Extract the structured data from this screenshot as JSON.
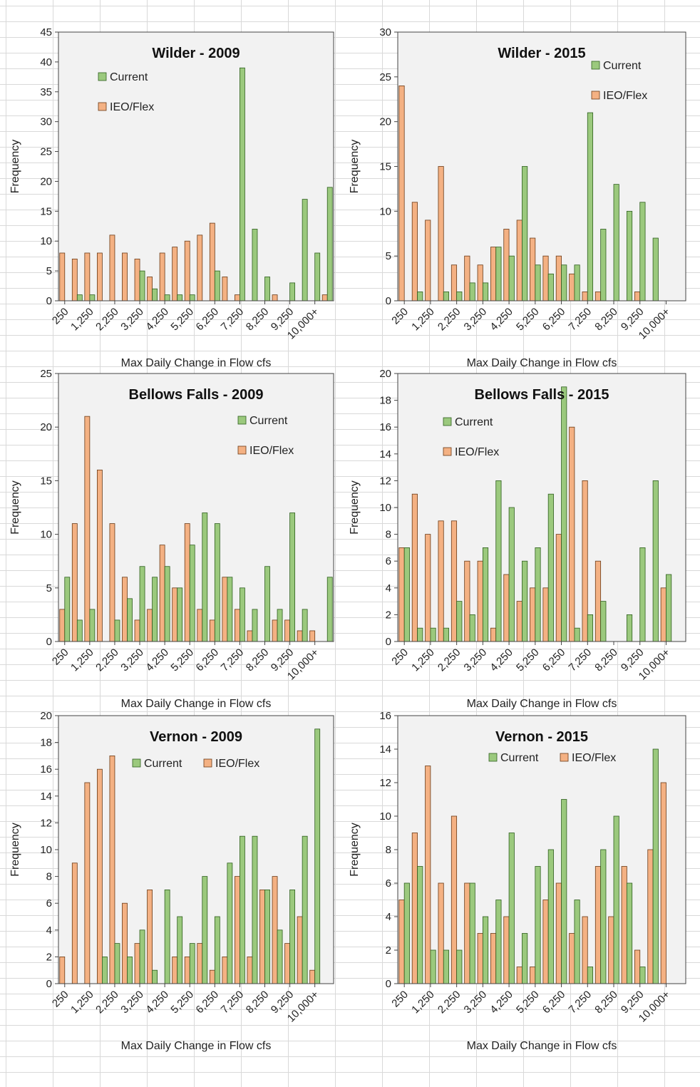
{
  "colors": {
    "current_fill": "#9bc97d",
    "current_stroke": "#2e5f1e",
    "ieo_fill": "#f4b183",
    "ieo_stroke": "#6a3a16",
    "plot_bg": "#f2f2f2",
    "plot_border": "#444444"
  },
  "chart_data": [
    {
      "type": "bar",
      "title": "Wilder - 2009",
      "xlabel": "Max Daily Change in Flow cfs",
      "ylabel": "Frequency",
      "ylim": [
        0,
        45
      ],
      "y_ticks": [
        "0",
        "5",
        "10",
        "15",
        "20",
        "25",
        "30",
        "35",
        "40",
        "45"
      ],
      "x_tick_labels": [
        "250",
        "1,250",
        "2,250",
        "3,250",
        "4,250",
        "5,250",
        "6,250",
        "7,250",
        "8,250",
        "9,250",
        "10,000+"
      ],
      "legend_placement": "top-left",
      "series": [
        {
          "name": "Current",
          "values": [
            0,
            1,
            1,
            0,
            0,
            0,
            5,
            2,
            1,
            1,
            1,
            0,
            5,
            0,
            39,
            12,
            4,
            0,
            3,
            17,
            8,
            19
          ]
        },
        {
          "name": "IEO/Flex",
          "values": [
            8,
            7,
            8,
            8,
            11,
            8,
            7,
            4,
            8,
            9,
            10,
            11,
            13,
            4,
            1,
            0,
            0,
            1,
            0,
            0,
            0,
            1
          ]
        }
      ]
    },
    {
      "type": "bar",
      "title": "Wilder - 2015",
      "xlabel": "Max Daily Change in Flow cfs",
      "ylabel": "Frequency",
      "ylim": [
        0,
        30
      ],
      "y_ticks": [
        "0",
        "5",
        "10",
        "15",
        "20",
        "25",
        "30"
      ],
      "x_tick_labels": [
        "250",
        "1,250",
        "2,250",
        "3,250",
        "4,250",
        "5,250",
        "6,250",
        "7,250",
        "8,250",
        "9,250",
        "10,000+"
      ],
      "legend_placement": "top-right",
      "series": [
        {
          "name": "Current",
          "values": [
            0,
            1,
            0,
            1,
            1,
            2,
            2,
            6,
            5,
            15,
            4,
            3,
            4,
            4,
            21,
            8,
            13,
            10,
            11,
            7,
            0,
            0
          ]
        },
        {
          "name": "IEO/Flex",
          "values": [
            24,
            11,
            9,
            15,
            4,
            5,
            4,
            6,
            8,
            9,
            7,
            5,
            5,
            3,
            1,
            1,
            0,
            0,
            1,
            0,
            0,
            0
          ]
        }
      ]
    },
    {
      "type": "bar",
      "title": "Bellows Falls - 2009",
      "xlabel": "Max Daily Change in Flow cfs",
      "ylabel": "Frequency",
      "ylim": [
        0,
        25
      ],
      "y_ticks": [
        "0",
        "5",
        "10",
        "15",
        "20",
        "25"
      ],
      "x_tick_labels": [
        "250",
        "1,250",
        "2,250",
        "3,250",
        "4,250",
        "5,250",
        "6,250",
        "7,250",
        "8,250",
        "9,250",
        "10,000+"
      ],
      "legend_placement": "top-right",
      "series": [
        {
          "name": "Current",
          "values": [
            6,
            2,
            3,
            0,
            2,
            4,
            7,
            6,
            7,
            5,
            9,
            12,
            11,
            6,
            5,
            3,
            7,
            3,
            12,
            3,
            0,
            6
          ]
        },
        {
          "name": "IEO/Flex",
          "values": [
            3,
            11,
            21,
            16,
            11,
            6,
            2,
            3,
            9,
            5,
            11,
            3,
            2,
            6,
            3,
            1,
            0,
            2,
            2,
            1,
            1,
            0
          ]
        }
      ]
    },
    {
      "type": "bar",
      "title": "Bellows Falls - 2015",
      "xlabel": "Max Daily Change in Flow cfs",
      "ylabel": "Frequency",
      "ylim": [
        0,
        20
      ],
      "y_ticks": [
        "0",
        "2",
        "4",
        "6",
        "8",
        "10",
        "12",
        "14",
        "16",
        "18",
        "20"
      ],
      "x_tick_labels": [
        "250",
        "1,250",
        "2,250",
        "3,250",
        "4,250",
        "5,250",
        "6,250",
        "7,250",
        "8,250",
        "9,250",
        "10,000+"
      ],
      "legend_placement": "top-center",
      "series": [
        {
          "name": "Current",
          "values": [
            7,
            1,
            1,
            1,
            3,
            2,
            7,
            12,
            10,
            6,
            7,
            11,
            19,
            1,
            2,
            3,
            0,
            2,
            7,
            12,
            5,
            0
          ]
        },
        {
          "name": "IEO/Flex",
          "values": [
            7,
            11,
            8,
            9,
            9,
            6,
            6,
            1,
            5,
            3,
            4,
            4,
            8,
            16,
            12,
            6,
            0,
            0,
            0,
            0,
            4,
            0
          ]
        }
      ]
    },
    {
      "type": "bar",
      "title": "Vernon - 2009",
      "xlabel": "Max Daily Change in Flow cfs",
      "ylabel": "Frequency",
      "ylim": [
        0,
        20
      ],
      "y_ticks": [
        "0",
        "2",
        "4",
        "6",
        "8",
        "10",
        "12",
        "14",
        "16",
        "18",
        "20"
      ],
      "x_tick_labels": [
        "250",
        "1,250",
        "2,250",
        "3,250",
        "4,250",
        "5,250",
        "6,250",
        "7,250",
        "8,250",
        "9,250",
        "10,000+"
      ],
      "legend_placement": "top-right",
      "series": [
        {
          "name": "Current",
          "values": [
            0,
            0,
            0,
            2,
            3,
            2,
            4,
            1,
            7,
            5,
            3,
            8,
            5,
            9,
            11,
            11,
            7,
            4,
            7,
            11,
            19,
            0
          ]
        },
        {
          "name": "IEO/Flex",
          "values": [
            2,
            9,
            15,
            16,
            17,
            6,
            3,
            7,
            0,
            2,
            2,
            3,
            1,
            2,
            8,
            2,
            7,
            8,
            3,
            5,
            1,
            0
          ]
        }
      ]
    },
    {
      "type": "bar",
      "title": "Vernon - 2015",
      "xlabel": "Max Daily Change in Flow cfs",
      "ylabel": "Frequency",
      "ylim": [
        0,
        16
      ],
      "y_ticks": [
        "0",
        "2",
        "4",
        "6",
        "8",
        "10",
        "12",
        "14",
        "16"
      ],
      "x_tick_labels": [
        "250",
        "1,250",
        "2,250",
        "3,250",
        "4,250",
        "5,250",
        "6,250",
        "7,250",
        "8,250",
        "9,250",
        "10,000+"
      ],
      "legend_placement": "top-right",
      "series": [
        {
          "name": "Current",
          "values": [
            6,
            7,
            2,
            2,
            2,
            6,
            4,
            5,
            9,
            3,
            7,
            8,
            11,
            5,
            1,
            8,
            10,
            6,
            1,
            14,
            0,
            0
          ]
        },
        {
          "name": "IEO/Flex",
          "values": [
            5,
            9,
            13,
            6,
            10,
            6,
            3,
            3,
            4,
            1,
            1,
            5,
            6,
            3,
            4,
            7,
            4,
            7,
            2,
            8,
            12,
            0
          ]
        }
      ]
    }
  ]
}
